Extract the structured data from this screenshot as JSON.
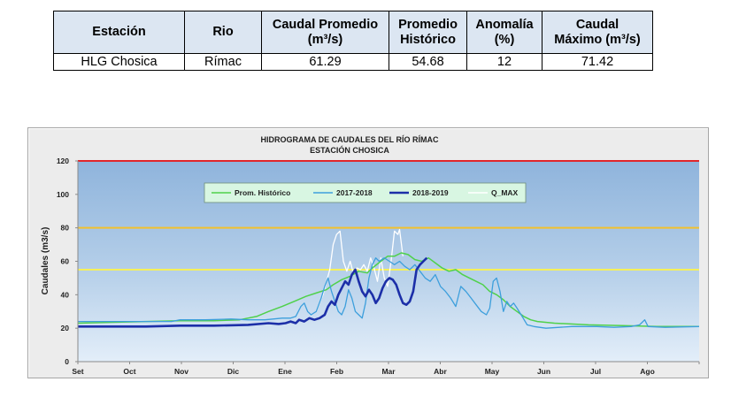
{
  "table": {
    "headers": {
      "station": "Estación",
      "river": "Rio",
      "avg_flow_line1": "Caudal Promedio",
      "avg_flow_line2": "(m³/s)",
      "hist_avg_line1": "Promedio",
      "hist_avg_line2": "Histórico",
      "anomaly_line1": "Anomalía",
      "anomaly_line2": "(%)",
      "max_flow_line1": "Caudal",
      "max_flow_line2": "Máximo (m³/s)"
    },
    "row": {
      "station": "HLG Chosica",
      "river": "Rímac",
      "avg_flow": "61.29",
      "hist_avg": "54.68",
      "anomaly": "12",
      "max_flow": "71.42"
    }
  },
  "chart_data": {
    "type": "line",
    "title": "HIDROGRAMA DE CAUDALES DEL RÍO RÍMAC",
    "subtitle": "ESTACIÓN CHOSICA",
    "ylabel": "Caudales  (m3/s)",
    "xlabel": "",
    "ylim": [
      0,
      120
    ],
    "yticks": [
      0,
      20,
      40,
      60,
      80,
      100,
      120
    ],
    "x_ticks": [
      "Set",
      "Oct",
      "Nov",
      "Dic",
      "Ene",
      "Feb",
      "Mar",
      "Abr",
      "May",
      "Jun",
      "Jul",
      "Ago"
    ],
    "xlim_days": [
      0,
      365
    ],
    "grid": false,
    "legend_position": "top-left inside plot",
    "reference_lines": [
      {
        "value": 120,
        "color": "#e0262b"
      },
      {
        "value": 80,
        "color": "#f2c12e"
      },
      {
        "value": 55,
        "color": "#f5f05a"
      }
    ],
    "series": [
      {
        "name": "Prom. Histórico",
        "color": "#4fd14a",
        "points": [
          [
            0,
            23
          ],
          [
            20,
            23.5
          ],
          [
            40,
            24
          ],
          [
            60,
            24.5
          ],
          [
            80,
            24.5
          ],
          [
            95,
            25
          ],
          [
            105,
            27
          ],
          [
            112,
            30
          ],
          [
            120,
            33
          ],
          [
            127,
            36
          ],
          [
            134,
            39
          ],
          [
            140,
            41
          ],
          [
            146,
            43
          ],
          [
            150,
            46
          ],
          [
            155,
            49
          ],
          [
            160,
            51
          ],
          [
            165,
            54
          ],
          [
            170,
            53
          ],
          [
            173,
            56
          ],
          [
            178,
            60
          ],
          [
            182,
            63
          ],
          [
            186,
            63
          ],
          [
            190,
            65
          ],
          [
            194,
            64
          ],
          [
            198,
            61
          ],
          [
            202,
            60
          ],
          [
            206,
            62
          ],
          [
            210,
            59
          ],
          [
            214,
            56
          ],
          [
            218,
            54
          ],
          [
            222,
            55
          ],
          [
            226,
            52
          ],
          [
            230,
            50
          ],
          [
            234,
            48
          ],
          [
            238,
            46
          ],
          [
            242,
            42
          ],
          [
            246,
            40
          ],
          [
            250,
            37
          ],
          [
            254,
            33
          ],
          [
            258,
            30
          ],
          [
            262,
            27
          ],
          [
            266,
            25
          ],
          [
            270,
            24
          ],
          [
            280,
            23
          ],
          [
            300,
            22
          ],
          [
            320,
            21.5
          ],
          [
            340,
            21
          ],
          [
            365,
            21
          ]
        ]
      },
      {
        "name": "2017-2018",
        "color": "#3d9fdc",
        "points": [
          [
            0,
            24
          ],
          [
            20,
            24
          ],
          [
            40,
            24
          ],
          [
            55,
            24
          ],
          [
            60,
            25
          ],
          [
            75,
            25
          ],
          [
            90,
            25.5
          ],
          [
            100,
            25
          ],
          [
            110,
            25
          ],
          [
            120,
            26
          ],
          [
            125,
            26
          ],
          [
            128,
            27
          ],
          [
            131,
            33
          ],
          [
            133,
            35
          ],
          [
            135,
            30
          ],
          [
            137,
            28
          ],
          [
            140,
            30
          ],
          [
            143,
            38
          ],
          [
            145,
            45
          ],
          [
            147,
            50
          ],
          [
            149,
            42
          ],
          [
            151,
            36
          ],
          [
            153,
            30
          ],
          [
            155,
            28
          ],
          [
            157,
            33
          ],
          [
            159,
            43
          ],
          [
            161,
            38
          ],
          [
            163,
            30
          ],
          [
            165,
            28
          ],
          [
            167,
            26
          ],
          [
            169,
            35
          ],
          [
            171,
            50
          ],
          [
            173,
            58
          ],
          [
            175,
            62
          ],
          [
            177,
            60
          ],
          [
            180,
            62
          ],
          [
            183,
            60
          ],
          [
            186,
            58
          ],
          [
            189,
            60
          ],
          [
            192,
            57
          ],
          [
            195,
            55
          ],
          [
            198,
            58
          ],
          [
            201,
            54
          ],
          [
            204,
            50
          ],
          [
            207,
            48
          ],
          [
            210,
            52
          ],
          [
            213,
            45
          ],
          [
            216,
            42
          ],
          [
            219,
            38
          ],
          [
            222,
            33
          ],
          [
            225,
            45
          ],
          [
            228,
            42
          ],
          [
            231,
            38
          ],
          [
            234,
            34
          ],
          [
            237,
            30
          ],
          [
            240,
            28
          ],
          [
            242,
            32
          ],
          [
            244,
            48
          ],
          [
            246,
            50
          ],
          [
            248,
            42
          ],
          [
            250,
            30
          ],
          [
            252,
            36
          ],
          [
            254,
            33
          ],
          [
            256,
            35
          ],
          [
            258,
            32
          ],
          [
            261,
            27
          ],
          [
            264,
            22
          ],
          [
            268,
            21
          ],
          [
            275,
            20
          ],
          [
            290,
            21
          ],
          [
            305,
            21
          ],
          [
            315,
            20.5
          ],
          [
            325,
            21
          ],
          [
            330,
            22
          ],
          [
            333,
            25
          ],
          [
            335,
            21
          ],
          [
            345,
            20.5
          ],
          [
            365,
            21
          ]
        ]
      },
      {
        "name": "2018-2019",
        "color": "#1c2fa8",
        "points": [
          [
            0,
            21
          ],
          [
            20,
            21
          ],
          [
            40,
            21
          ],
          [
            60,
            21.5
          ],
          [
            80,
            21.5
          ],
          [
            100,
            22
          ],
          [
            112,
            23
          ],
          [
            118,
            22.5
          ],
          [
            122,
            23
          ],
          [
            125,
            24
          ],
          [
            128,
            23
          ],
          [
            130,
            25
          ],
          [
            133,
            24
          ],
          [
            136,
            26
          ],
          [
            139,
            25
          ],
          [
            142,
            26
          ],
          [
            145,
            28
          ],
          [
            147,
            33
          ],
          [
            149,
            36
          ],
          [
            151,
            34
          ],
          [
            153,
            40
          ],
          [
            155,
            44
          ],
          [
            157,
            48
          ],
          [
            159,
            46
          ],
          [
            161,
            52
          ],
          [
            163,
            55
          ],
          [
            165,
            48
          ],
          [
            167,
            42
          ],
          [
            169,
            39
          ],
          [
            171,
            43
          ],
          [
            173,
            40
          ],
          [
            175,
            35
          ],
          [
            177,
            38
          ],
          [
            179,
            44
          ],
          [
            181,
            48
          ],
          [
            183,
            50
          ],
          [
            185,
            49
          ],
          [
            187,
            46
          ],
          [
            189,
            40
          ],
          [
            191,
            35
          ],
          [
            193,
            34
          ],
          [
            195,
            36
          ],
          [
            197,
            42
          ],
          [
            199,
            55
          ],
          [
            201,
            58
          ],
          [
            203,
            60
          ],
          [
            205,
            62
          ]
        ]
      },
      {
        "name": "Q_MAX",
        "color": "#ffffff",
        "points": [
          [
            140,
            30
          ],
          [
            144,
            40
          ],
          [
            148,
            55
          ],
          [
            150,
            70
          ],
          [
            152,
            76
          ],
          [
            154,
            78
          ],
          [
            156,
            60
          ],
          [
            158,
            54
          ],
          [
            160,
            60
          ],
          [
            162,
            52
          ],
          [
            164,
            56
          ],
          [
            166,
            55
          ],
          [
            168,
            58
          ],
          [
            170,
            54
          ],
          [
            172,
            62
          ],
          [
            174,
            56
          ],
          [
            176,
            48
          ],
          [
            178,
            62
          ],
          [
            180,
            50
          ],
          [
            182,
            45
          ],
          [
            184,
            60
          ],
          [
            186,
            78
          ],
          [
            188,
            76
          ],
          [
            189,
            79
          ],
          [
            191,
            63
          ]
        ]
      }
    ]
  }
}
